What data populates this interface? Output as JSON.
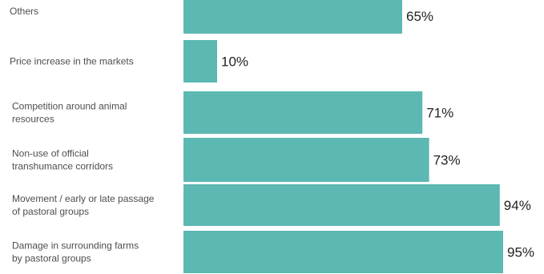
{
  "chart_data": {
    "type": "bar",
    "orientation": "horizontal",
    "categories": [
      [
        "Others"
      ],
      [
        "Price increase in the markets"
      ],
      [
        "Competition around animal",
        "resources"
      ],
      [
        "Non-use of official",
        "transhumance corridors"
      ],
      [
        "Movement / early or late passage",
        "of pastoral groups"
      ],
      [
        "Damage in surrounding farms",
        "by pastoral groups"
      ]
    ],
    "values": [
      65,
      10,
      71,
      73,
      94,
      95
    ],
    "value_labels": [
      "65%",
      "10%",
      "71%",
      "73%",
      "94%",
      "95%"
    ],
    "xlim": [
      0,
      100
    ],
    "bar_color": "#5cb8b2",
    "title": "",
    "xlabel": "",
    "ylabel": "",
    "grid": false,
    "legend": "none"
  }
}
